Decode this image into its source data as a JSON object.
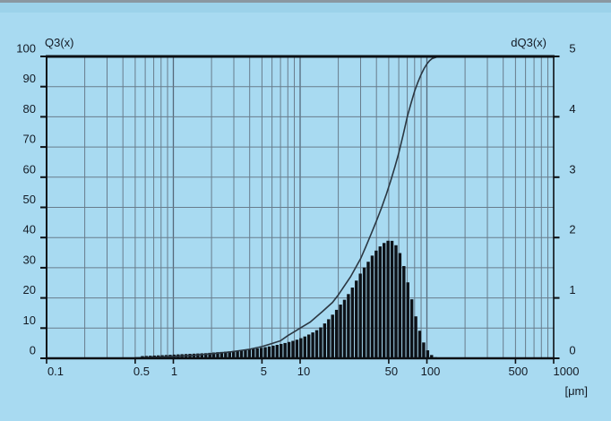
{
  "window": {
    "description": "Particle size distribution chart (cumulative Q3 and density dQ3 vs particle size, log scale)"
  },
  "colors": {
    "background": "#a8daf1",
    "top_band": "#9cd2ea",
    "top_border": "#8a97a1",
    "grid": "#687c8c",
    "grid_major": "#55697a",
    "axis": "#0c1014",
    "bars": "#0d1117",
    "curve": "#2b3742",
    "text": "#131a24"
  },
  "chart_data": {
    "type": "mixed",
    "subtypes": [
      "line",
      "bar"
    ],
    "x_axis": {
      "scale": "log",
      "min": 0.1,
      "max": 1000,
      "unit": "[μm]",
      "tick_labels": [
        "0.1",
        "0.5",
        "1",
        "5",
        "10",
        "50",
        "100",
        "500",
        "1000"
      ],
      "tick_values": [
        0.1,
        0.5,
        1,
        5,
        10,
        50,
        100,
        500,
        1000
      ],
      "minor_grid": "log decades 2-9"
    },
    "left_axis": {
      "label": "Q3(x)",
      "min": 0,
      "max": 100,
      "tick_step": 10
    },
    "right_axis": {
      "label": "dQ3(x)",
      "min": 0,
      "max": 5,
      "tick_step": 1
    },
    "series": [
      {
        "name": "Q3(x)",
        "type": "line",
        "axis": "left",
        "points": [
          [
            0.5,
            0.15
          ],
          [
            0.7,
            0.35
          ],
          [
            1,
            0.6
          ],
          [
            1.4,
            0.95
          ],
          [
            2,
            1.5
          ],
          [
            2.8,
            2.1
          ],
          [
            4,
            3.0
          ],
          [
            5,
            3.9
          ],
          [
            6,
            4.9
          ],
          [
            7,
            5.8
          ],
          [
            8,
            7.5
          ],
          [
            9,
            8.8
          ],
          [
            10,
            10.0
          ],
          [
            12,
            12.0
          ],
          [
            15,
            15.5
          ],
          [
            18,
            18.5
          ],
          [
            20,
            21.0
          ],
          [
            25,
            27.0
          ],
          [
            30,
            33.0
          ],
          [
            33,
            37.0
          ],
          [
            36,
            40.8
          ],
          [
            40,
            45.5
          ],
          [
            44,
            50.0
          ],
          [
            48,
            54.5
          ],
          [
            52,
            59.0
          ],
          [
            56,
            63.5
          ],
          [
            60,
            68.0
          ],
          [
            65,
            74.0
          ],
          [
            70,
            80.0
          ],
          [
            75,
            84.5
          ],
          [
            80,
            88.5
          ],
          [
            85,
            91.5
          ],
          [
            90,
            94.0
          ],
          [
            95,
            96.0
          ],
          [
            100,
            97.5
          ],
          [
            105,
            98.6
          ],
          [
            110,
            99.3
          ],
          [
            120,
            99.8
          ],
          [
            135,
            100
          ],
          [
            1000,
            100
          ]
        ]
      },
      {
        "name": "dQ3(x)",
        "type": "histogram",
        "axis": "right",
        "points": [
          [
            0.55,
            0.035
          ],
          [
            0.7,
            0.045
          ],
          [
            0.9,
            0.055
          ],
          [
            1.1,
            0.065
          ],
          [
            1.4,
            0.075
          ],
          [
            1.8,
            0.085
          ],
          [
            2.2,
            0.1
          ],
          [
            2.8,
            0.115
          ],
          [
            3.5,
            0.135
          ],
          [
            4.5,
            0.16
          ],
          [
            5.5,
            0.19
          ],
          [
            6.5,
            0.22
          ],
          [
            7.5,
            0.25
          ],
          [
            8.5,
            0.28
          ],
          [
            9.5,
            0.31
          ],
          [
            10.5,
            0.345
          ],
          [
            11.5,
            0.385
          ],
          [
            12.5,
            0.425
          ],
          [
            13.5,
            0.465
          ],
          [
            14.5,
            0.51
          ],
          [
            15.5,
            0.57
          ],
          [
            16.5,
            0.63
          ],
          [
            17.5,
            0.69
          ],
          [
            18.5,
            0.75
          ],
          [
            19.5,
            0.81
          ],
          [
            21,
            0.9
          ],
          [
            23,
            1.0
          ],
          [
            25,
            1.12
          ],
          [
            27,
            1.24
          ],
          [
            29,
            1.36
          ],
          [
            31,
            1.46
          ],
          [
            34,
            1.58
          ],
          [
            37,
            1.7
          ],
          [
            40,
            1.79
          ],
          [
            44,
            1.88
          ],
          [
            48,
            1.94
          ],
          [
            52,
            1.96
          ],
          [
            55,
            1.92
          ],
          [
            58,
            1.85
          ],
          [
            62,
            1.72
          ],
          [
            66,
            1.52
          ],
          [
            70,
            1.3
          ],
          [
            74,
            1.08
          ],
          [
            78,
            0.88
          ],
          [
            82,
            0.68
          ],
          [
            86,
            0.52
          ],
          [
            90,
            0.38
          ],
          [
            94,
            0.27
          ],
          [
            98,
            0.18
          ],
          [
            103,
            0.11
          ],
          [
            108,
            0.06
          ],
          [
            113,
            0.03
          ],
          [
            118,
            0.015
          ]
        ]
      }
    ]
  }
}
